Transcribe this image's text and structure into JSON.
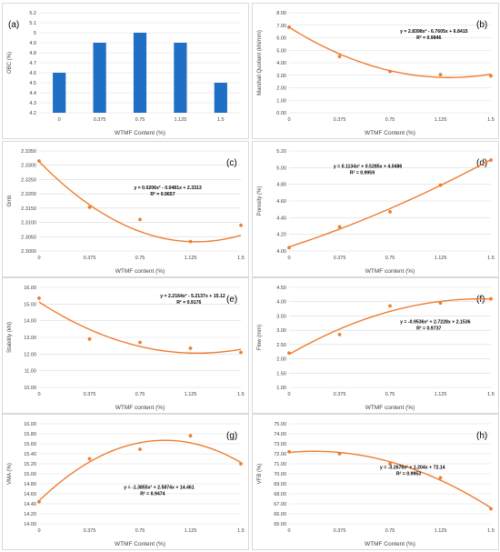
{
  "chart_data": [
    {
      "panel_label": "(a)",
      "type": "bar",
      "categories": [
        "0",
        "0.375",
        "0.75",
        "1.125",
        "1.5"
      ],
      "values": [
        4.6,
        4.9,
        5.0,
        4.9,
        4.5
      ],
      "xlabel": "WTMF Content (%)",
      "ylabel": "OBC (%)",
      "ylim": [
        4.2,
        5.2
      ],
      "yticks": [
        "4.2",
        "4.3",
        "4.4",
        "4.5",
        "4.6",
        "4.7",
        "4.8",
        "4.9",
        "5",
        "5.1",
        "5.2"
      ],
      "color": "#1f6fc5"
    },
    {
      "panel_label": "(b)",
      "type": "scatter",
      "x": [
        0,
        0.375,
        0.75,
        1.125,
        1.5
      ],
      "y": [
        6.85,
        4.5,
        3.3,
        3.05,
        2.95
      ],
      "trend": [
        2.8398,
        -6.7605,
        6.8415
      ],
      "equation": "y = 2.8398x² - 6.7605x + 6.8415",
      "r2": "R² = 0.9846",
      "xlabel": "WTMF Content (%)",
      "ylabel": "Marshall Quotient (kN/mm)",
      "ylim": [
        0,
        8
      ],
      "yticks": [
        "0.00",
        "1.00",
        "2.00",
        "3.00",
        "4.00",
        "5.00",
        "6.00",
        "7.00",
        "8.00"
      ],
      "xticks": [
        "0",
        "0.375",
        "0.75",
        "1.125",
        "1.5"
      ],
      "color": "#ed7d31"
    },
    {
      "panel_label": "(c)",
      "type": "scatter",
      "x": [
        0,
        0.375,
        0.75,
        1.125,
        1.5
      ],
      "y": [
        2.3315,
        2.3153,
        2.311,
        2.3033,
        2.309
      ],
      "trend": [
        0.0206,
        -0.0481,
        2.3313
      ],
      "equation": "y = 0.0206x² - 0.0481x + 2.3313",
      "r2": "R² = 0.9657",
      "xlabel": "WTMF content (%)",
      "ylabel": "Gmb",
      "ylim": [
        2.3,
        2.335
      ],
      "yticks": [
        "2.3000",
        "2.3050",
        "2.3100",
        "2.3150",
        "2.3200",
        "2.3250",
        "2.3300",
        "2.3350"
      ],
      "xticks": [
        "0",
        "0.375",
        "0.75",
        "1.125",
        "1.5"
      ],
      "color": "#ed7d31"
    },
    {
      "panel_label": "(d)",
      "type": "scatter",
      "x": [
        0,
        0.375,
        0.75,
        1.125,
        1.5
      ],
      "y": [
        4.04,
        4.29,
        4.47,
        4.79,
        5.09
      ],
      "trend": [
        0.1134,
        0.5285,
        4.0486
      ],
      "equation": "y = 0.1134x² + 0.5285x + 4.0486",
      "r2": "R² = 0.9959",
      "xlabel": "WTMF content (%)",
      "ylabel": "Porosity (%)",
      "ylim": [
        4,
        5.2
      ],
      "yticks": [
        "4.00",
        "4.20",
        "4.40",
        "4.60",
        "4.80",
        "5.00",
        "5.20"
      ],
      "xticks": [
        "0",
        "0.375",
        "0.75",
        "1.125",
        "1.5"
      ],
      "color": "#ed7d31"
    },
    {
      "panel_label": "(e)",
      "type": "scatter",
      "x": [
        0,
        0.375,
        0.75,
        1.125,
        1.5
      ],
      "y": [
        15.35,
        12.9,
        12.7,
        12.35,
        12.1
      ],
      "trend": [
        2.2164,
        -5.2137,
        15.12
      ],
      "equation": "y = 2.2164x² - 5.2137x + 15.12",
      "r2": "R² = 0.9176",
      "xlabel": "WTMF content (%)",
      "ylabel": "Stability (kN)",
      "ylim": [
        10,
        16
      ],
      "yticks": [
        "10.00",
        "11.00",
        "12.00",
        "13.00",
        "14.00",
        "15.00",
        "16.00"
      ],
      "xticks": [
        "0",
        "0.375",
        "0.75",
        "1.125",
        "1.5"
      ],
      "color": "#ed7d31"
    },
    {
      "panel_label": "(f)",
      "type": "scatter",
      "x": [
        0,
        0.375,
        0.75,
        1.125,
        1.5
      ],
      "y": [
        2.2,
        2.85,
        3.85,
        3.95,
        4.1
      ],
      "trend": [
        -0.9536,
        2.7228,
        2.1536
      ],
      "equation": "y = -0.9536x² + 2.7228x + 2.1536",
      "r2": "R² = 0.9737",
      "xlabel": "WTMF content (%)",
      "ylabel": "Flow (mm)",
      "ylim": [
        1,
        4.5
      ],
      "yticks": [
        "1.00",
        "1.50",
        "2.00",
        "2.50",
        "3.00",
        "3.50",
        "4.00",
        "4.50"
      ],
      "xticks": [
        "0",
        "0.375",
        "0.75",
        "1.125",
        "1.5"
      ],
      "color": "#ed7d31"
    },
    {
      "panel_label": "(g)",
      "type": "scatter",
      "x": [
        0,
        0.375,
        0.75,
        1.125,
        1.5
      ],
      "y": [
        14.44,
        15.3,
        15.49,
        15.76,
        15.2
      ],
      "trend": [
        -1.3855,
        2.5874,
        14.461
      ],
      "equation": "y = -1.3855x² + 2.5874x + 14.461",
      "r2": "R² = 0.9474",
      "xlabel": "WTMF Content (%)",
      "ylabel": "VMA (%)",
      "ylim": [
        14,
        16
      ],
      "yticks": [
        "14.00",
        "14.20",
        "14.40",
        "14.60",
        "14.80",
        "15.00",
        "15.20",
        "15.40",
        "15.60",
        "15.80",
        "16.00"
      ],
      "xticks": [
        "0",
        "0.375",
        "0.75",
        "1.125",
        "1.5"
      ],
      "color": "#ed7d31"
    },
    {
      "panel_label": "(h)",
      "type": "scatter",
      "x": [
        0,
        0.375,
        0.75,
        1.125,
        1.5
      ],
      "y": [
        72.2,
        72.0,
        71.0,
        69.6,
        66.5
      ],
      "trend": [
        -3.2676,
        1.204,
        72.14
      ],
      "equation": "y = -3.2676x² + 1.204x + 72.14",
      "r2": "R² = 0.9953",
      "xlabel": "WTMF Content (%)",
      "ylabel": "VFB (%)",
      "ylim": [
        65,
        75
      ],
      "yticks": [
        "65.00",
        "66.00",
        "67.00",
        "68.00",
        "69.00",
        "70.00",
        "71.00",
        "72.00",
        "73.00",
        "74.00",
        "75.00"
      ],
      "xticks": [
        "0",
        "0.375",
        "0.75",
        "1.125",
        "1.5"
      ],
      "color": "#ed7d31"
    }
  ]
}
